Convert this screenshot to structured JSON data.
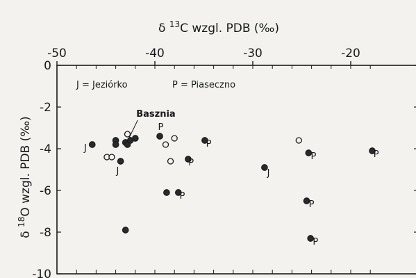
{
  "chart_data": {
    "type": "scatter",
    "xlabel": "δ¹³C wzgl. PDB (‰)",
    "ylabel": "δ¹⁸O wzgl. PDB (‰)",
    "xlim": [
      -50,
      -17
    ],
    "ylim": [
      -10,
      0
    ],
    "x_ticks": [
      -50,
      -40,
      -30,
      -20
    ],
    "y_ticks": [
      0,
      -2,
      -4,
      -6,
      -8,
      -10
    ],
    "x_tick_labels": [
      "-50",
      "-40",
      "-30",
      "-20"
    ],
    "y_tick_labels": [
      "0",
      "-2",
      "-4",
      "-6",
      "-8",
      "-10"
    ],
    "x_axis_position": "top",
    "grid": false,
    "legend_text": {
      "jeziorko": "J = Jeziórko",
      "piaseczno": "P = Piaseczno"
    },
    "series": [
      {
        "marker": "filled",
        "points": [
          {
            "x": -46.4,
            "y": -3.8
          },
          {
            "x": -44.0,
            "y": -3.6
          },
          {
            "x": -44.0,
            "y": -3.8
          },
          {
            "x": -43.5,
            "y": -4.6
          },
          {
            "x": -43.0,
            "y": -3.7
          },
          {
            "x": -42.8,
            "y": -3.8
          },
          {
            "x": -42.5,
            "y": -3.6
          },
          {
            "x": -42.0,
            "y": -3.5
          },
          {
            "x": -43.0,
            "y": -7.9
          },
          {
            "x": -39.5,
            "y": -3.4
          },
          {
            "x": -38.8,
            "y": -6.1
          },
          {
            "x": -37.6,
            "y": -6.1
          },
          {
            "x": -36.6,
            "y": -4.5
          },
          {
            "x": -34.9,
            "y": -3.6
          },
          {
            "x": -28.8,
            "y": -4.9
          },
          {
            "x": -24.3,
            "y": -4.2
          },
          {
            "x": -24.5,
            "y": -6.5
          },
          {
            "x": -24.1,
            "y": -8.3
          },
          {
            "x": -17.8,
            "y": -4.1
          }
        ]
      },
      {
        "marker": "open",
        "points": [
          {
            "x": -44.9,
            "y": -4.4
          },
          {
            "x": -44.4,
            "y": -4.4
          },
          {
            "x": -42.8,
            "y": -3.3
          },
          {
            "x": -38.9,
            "y": -3.8
          },
          {
            "x": -38.0,
            "y": -3.5
          },
          {
            "x": -38.4,
            "y": -4.6
          },
          {
            "x": -25.3,
            "y": -3.6
          }
        ]
      }
    ],
    "annotations": [
      {
        "text": "J",
        "x": -47.1,
        "y": -4.1
      },
      {
        "text": "J",
        "x": -43.8,
        "y": -5.2
      },
      {
        "text": "J",
        "x": -28.4,
        "y": -5.3
      },
      {
        "text": "P",
        "x": -39.4,
        "y": -3.1
      },
      {
        "text": "P",
        "x": -34.5,
        "y": -3.9
      },
      {
        "text": "P",
        "x": -36.3,
        "y": -4.8
      },
      {
        "text": "P",
        "x": -37.2,
        "y": -6.4
      },
      {
        "text": "P",
        "x": -23.8,
        "y": -4.5
      },
      {
        "text": "P",
        "x": -24.0,
        "y": -6.8
      },
      {
        "text": "P",
        "x": -23.6,
        "y": -8.6
      },
      {
        "text": "P",
        "x": -17.4,
        "y": -4.4
      }
    ],
    "callout": {
      "text": "Basznia",
      "x": -41.9,
      "y": -2.3,
      "target_x": -42.6,
      "target_y": -3.45
    }
  }
}
